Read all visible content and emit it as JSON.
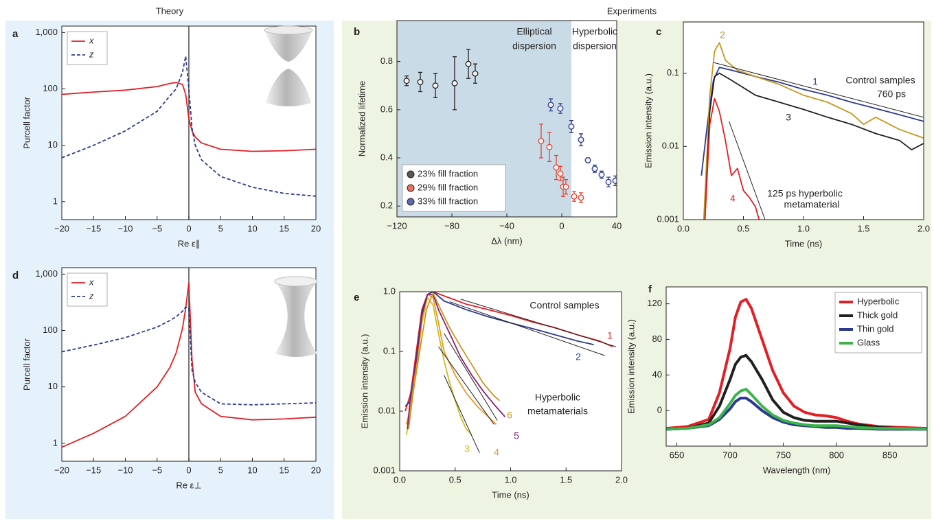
{
  "header": {
    "theory": "Theory",
    "experiments": "Experiments"
  },
  "chart_data": [
    {
      "type": "line",
      "panel_label": "a",
      "y_label": "Purcell factor",
      "x_label": "Re ε∥",
      "log_y": true,
      "zero_line": true,
      "legend": "upper left",
      "x": [
        -20,
        -15,
        -10,
        -5,
        -3,
        -2,
        -1,
        -0.5,
        0,
        0.5,
        1,
        2,
        5,
        10,
        15,
        20
      ],
      "series": [
        {
          "name": "x",
          "color": "#e31e24",
          "dash": false,
          "values": [
            80,
            88,
            95,
            110,
            125,
            130,
            120,
            80,
            30,
            18,
            14,
            11,
            8.5,
            7.8,
            8,
            8.5
          ]
        },
        {
          "name": "z",
          "color": "#2b3990",
          "dash": true,
          "values": [
            6,
            10,
            18,
            40,
            75,
            100,
            200,
            380,
            100,
            20,
            10,
            5.5,
            2.8,
            1.8,
            1.4,
            1.25
          ]
        }
      ],
      "xlim": [
        -20,
        20
      ],
      "xticks": [
        {
          "value": -20,
          "label": "−20"
        },
        {
          "value": -15,
          "label": "−15"
        },
        {
          "value": -10,
          "label": "−10"
        },
        {
          "value": -5,
          "label": "−5"
        },
        0,
        5,
        10,
        15,
        20
      ],
      "ylim": [
        0.48,
        1300
      ],
      "yticks": [
        1,
        10,
        100,
        {
          "value": 1000,
          "label": "1,000"
        }
      ]
    },
    {
      "type": "scatter",
      "panel_label": "b",
      "y_label": "Normalized lifetime",
      "x_label": "Δλ (nm)",
      "legend": "lower left",
      "shaded_region": [
        -120,
        7
      ],
      "shade_color": "#c9dbe6",
      "region_labels": [
        "Elliptical",
        "dispersion",
        "Hyperbolic",
        "dispersion"
      ],
      "series": [
        {
          "name": "23% fill fraction",
          "color": "#231f20",
          "x": [
            -113,
            -103,
            -92,
            -78,
            -68,
            -63
          ],
          "values": [
            0.72,
            0.715,
            0.7,
            0.71,
            0.79,
            0.75
          ],
          "errors": [
            0.02,
            0.04,
            0.05,
            0.11,
            0.06,
            0.04
          ]
        },
        {
          "name": "29% fill fraction",
          "color": "#e8402a",
          "x": [
            -15,
            -9,
            -4,
            -1,
            1,
            3,
            9,
            14
          ],
          "values": [
            0.47,
            0.445,
            0.36,
            0.335,
            0.28,
            0.28,
            0.24,
            0.235
          ],
          "errors": [
            0.07,
            0.06,
            0.05,
            0.03,
            0.04,
            0.03,
            0.02,
            0.02
          ]
        },
        {
          "name": "33% fill fraction",
          "color": "#2b3990",
          "x": [
            -8,
            -1,
            7,
            14,
            19,
            24,
            29,
            34,
            39
          ],
          "values": [
            0.62,
            0.605,
            0.53,
            0.475,
            0.39,
            0.355,
            0.33,
            0.3,
            0.305
          ],
          "errors": [
            0.025,
            0.02,
            0.025,
            0.025,
            0.01,
            0.015,
            0.015,
            0.02,
            0.02
          ]
        }
      ],
      "xlim": [
        -120,
        40
      ],
      "xticks": [
        {
          "value": -120,
          "label": "−120"
        },
        {
          "value": -80,
          "label": "−80"
        },
        {
          "value": -40,
          "label": "−40"
        },
        0,
        40
      ],
      "ylim": [
        0.155,
        0.97
      ],
      "yticks": [
        0.2,
        0.4,
        0.6,
        0.8
      ]
    },
    {
      "type": "line",
      "panel_label": "c",
      "y_label": "Emission intensity (a.u.)",
      "x_label": "Time (ns)",
      "log_y": true,
      "series": [
        {
          "name": "1",
          "color": "#2b3990",
          "x": [
            0.15,
            0.2,
            0.25,
            0.3,
            0.4,
            0.6,
            0.8,
            1.0,
            1.2,
            1.4,
            1.6,
            1.8,
            2.0
          ],
          "values": [
            0.004,
            0.02,
            0.08,
            0.12,
            0.11,
            0.09,
            0.075,
            0.06,
            0.05,
            0.04,
            0.033,
            0.027,
            0.022
          ]
        },
        {
          "name": "2",
          "color": "#c8961e",
          "x": [
            0.17,
            0.22,
            0.26,
            0.3,
            0.35,
            0.45,
            0.6,
            0.8,
            1.0,
            1.2,
            1.4,
            1.5,
            1.6,
            1.8,
            2.0
          ],
          "values": [
            0.001,
            0.05,
            0.2,
            0.26,
            0.15,
            0.11,
            0.09,
            0.07,
            0.05,
            0.04,
            0.028,
            0.02,
            0.025,
            0.017,
            0.013
          ]
        },
        {
          "name": "3",
          "color": "#231f20",
          "x": [
            0.18,
            0.22,
            0.26,
            0.3,
            0.4,
            0.6,
            0.8,
            1.0,
            1.2,
            1.4,
            1.6,
            1.8,
            1.9,
            2.0
          ],
          "values": [
            0.001,
            0.03,
            0.09,
            0.1,
            0.08,
            0.05,
            0.04,
            0.032,
            0.025,
            0.02,
            0.015,
            0.012,
            0.009,
            0.011
          ]
        },
        {
          "name": "4",
          "color": "#e31e24",
          "x": [
            0.18,
            0.22,
            0.26,
            0.3,
            0.35,
            0.4,
            0.45,
            0.5,
            0.55,
            0.6,
            0.63
          ],
          "values": [
            0.001,
            0.02,
            0.045,
            0.03,
            0.012,
            0.004,
            0.005,
            0.0025,
            0.002,
            0.0015,
            0.001
          ]
        }
      ],
      "fits": [
        {
          "x": [
            0.25,
            2.0
          ],
          "values": [
            0.14,
            0.025
          ]
        },
        {
          "x": [
            0.38,
            0.68
          ],
          "values": [
            0.022,
            0.001
          ]
        }
      ],
      "annotations": [
        "Control samples",
        "760 ps",
        "125 ps hyperbolic",
        "metamaterial"
      ],
      "xlim": [
        0,
        2
      ],
      "xticks": [
        {
          "value": 0,
          "label": "0.0"
        },
        0.5,
        {
          "value": 1,
          "label": "1.0"
        },
        1.5,
        {
          "value": 2,
          "label": "2.0"
        }
      ],
      "ylim": [
        0.001,
        0.5
      ],
      "yticks": [
        0.001,
        0.01,
        0.1
      ]
    },
    {
      "type": "line",
      "panel_label": "d",
      "y_label": "Purcell factor",
      "x_label": "Re ε⊥",
      "log_y": true,
      "zero_line": true,
      "legend": "upper left",
      "x": [
        -20,
        -15,
        -10,
        -5,
        -3,
        -2,
        -1,
        -0.5,
        0,
        0.5,
        1,
        2,
        5,
        10,
        15,
        20
      ],
      "series": [
        {
          "name": "x",
          "color": "#e31e24",
          "dash": false,
          "values": [
            0.85,
            1.5,
            3,
            10,
            22,
            40,
            110,
            250,
            700,
            30,
            8,
            5,
            3,
            2.6,
            2.7,
            2.9
          ]
        },
        {
          "name": "z",
          "color": "#2b3990",
          "dash": true,
          "values": [
            42,
            55,
            75,
            115,
            150,
            175,
            220,
            260,
            250,
            20,
            12,
            8,
            5,
            4.8,
            5,
            5.2
          ]
        }
      ],
      "xlim": [
        -20,
        20
      ],
      "xticks": [
        {
          "value": -20,
          "label": "−20"
        },
        {
          "value": -15,
          "label": "−15"
        },
        {
          "value": -10,
          "label": "−10"
        },
        {
          "value": -5,
          "label": "−5"
        },
        0,
        5,
        10,
        15,
        20
      ],
      "ylim": [
        0.48,
        1300
      ],
      "yticks": [
        1,
        10,
        100,
        {
          "value": 1000,
          "label": "1,000"
        }
      ]
    },
    {
      "type": "line",
      "panel_label": "e",
      "y_label": "Emission intensity (a.u.)",
      "x_label": "Time (ns)",
      "log_y": true,
      "series": [
        {
          "name": "1",
          "color": "#e31e24",
          "x": [
            0.05,
            0.1,
            0.15,
            0.2,
            0.25,
            0.3,
            0.4,
            0.6,
            0.8,
            1.0,
            1.2,
            1.4,
            1.6,
            1.8,
            1.92
          ],
          "values": [
            0.01,
            0.02,
            0.1,
            0.5,
            0.9,
            1.0,
            0.85,
            0.62,
            0.5,
            0.4,
            0.31,
            0.25,
            0.19,
            0.15,
            0.12
          ]
        },
        {
          "name": "2",
          "color": "#2b3990",
          "x": [
            0.05,
            0.1,
            0.15,
            0.2,
            0.25,
            0.3,
            0.4,
            0.6,
            0.8,
            1.0,
            1.2,
            1.4,
            1.6,
            1.75
          ],
          "values": [
            0.012,
            0.015,
            0.08,
            0.45,
            0.9,
            1.0,
            0.7,
            0.5,
            0.38,
            0.3,
            0.24,
            0.19,
            0.15,
            0.13
          ]
        },
        {
          "name": "3",
          "color": "#c8c020",
          "x": [
            0.06,
            0.1,
            0.15,
            0.2,
            0.25,
            0.3,
            0.35,
            0.4,
            0.45,
            0.5,
            0.55,
            0.6,
            0.65
          ],
          "values": [
            0.004,
            0.01,
            0.05,
            0.3,
            0.8,
            0.6,
            0.2,
            0.07,
            0.03,
            0.015,
            0.008,
            0.005,
            0.004
          ]
        },
        {
          "name": "4",
          "color": "#f0961e",
          "x": [
            0.06,
            0.1,
            0.15,
            0.2,
            0.25,
            0.3,
            0.35,
            0.4,
            0.5,
            0.6,
            0.7,
            0.8,
            0.87
          ],
          "values": [
            0.006,
            0.012,
            0.06,
            0.35,
            0.9,
            0.8,
            0.3,
            0.1,
            0.04,
            0.02,
            0.012,
            0.008,
            0.006
          ]
        },
        {
          "name": "5",
          "color": "#8b2070",
          "x": [
            0.07,
            0.1,
            0.15,
            0.2,
            0.25,
            0.3,
            0.35,
            0.45,
            0.55,
            0.65,
            0.75,
            0.85,
            0.95
          ],
          "values": [
            0.005,
            0.02,
            0.07,
            0.4,
            0.9,
            0.9,
            0.5,
            0.2,
            0.08,
            0.04,
            0.022,
            0.013,
            0.008
          ]
        },
        {
          "name": "6",
          "color": "#c8961e",
          "x": [
            0.08,
            0.12,
            0.18,
            0.24,
            0.3,
            0.35,
            0.45,
            0.55,
            0.65,
            0.75,
            0.85,
            0.9
          ],
          "values": [
            0.005,
            0.02,
            0.1,
            0.5,
            0.95,
            0.6,
            0.25,
            0.12,
            0.06,
            0.03,
            0.018,
            0.015
          ]
        }
      ],
      "fits": [
        {
          "x": [
            0.55,
            1.95
          ],
          "values": [
            0.75,
            0.12
          ]
        },
        {
          "x": [
            0.45,
            1.85
          ],
          "values": [
            0.68,
            0.085
          ]
        },
        {
          "x": [
            0.4,
            0.88
          ],
          "values": [
            0.2,
            0.007
          ]
        },
        {
          "x": [
            0.35,
            0.85
          ],
          "values": [
            0.12,
            0.006
          ]
        },
        {
          "x": [
            0.4,
            0.72
          ],
          "values": [
            0.04,
            0.002
          ]
        }
      ],
      "annotations": [
        "Control samples",
        "Hyperbolic",
        "metamaterials"
      ],
      "xlim": [
        0,
        2
      ],
      "xticks": [
        {
          "value": 0,
          "label": "0.0"
        },
        0.5,
        {
          "value": 1,
          "label": "1.0"
        },
        1.5,
        {
          "value": 2,
          "label": "2.0"
        }
      ],
      "ylim": [
        0.001,
        1
      ],
      "yticks": [
        0.001,
        0.01,
        0.1,
        {
          "value": 1,
          "label": "1.0"
        }
      ]
    },
    {
      "type": "line",
      "panel_label": "f",
      "y_label": "Emission intensity (a.u.)",
      "x_label": "Wavelength (nm)",
      "legend": "upper right",
      "line_width": 4,
      "x": [
        640,
        660,
        680,
        690,
        700,
        705,
        710,
        715,
        720,
        730,
        740,
        750,
        760,
        770,
        780,
        790,
        800,
        810,
        820,
        840,
        860,
        885
      ],
      "series": [
        {
          "name": "Hyperbolic",
          "color": "#e31e24",
          "values": [
            -20,
            -18,
            -10,
            20,
            70,
            105,
            122,
            125,
            115,
            80,
            45,
            20,
            5,
            -2,
            -5,
            -6,
            -8,
            -12,
            -15,
            -18,
            -19,
            -20
          ]
        },
        {
          "name": "Thick gold",
          "color": "#231f20",
          "values": [
            -21,
            -20,
            -14,
            5,
            35,
            52,
            60,
            62,
            55,
            35,
            12,
            -2,
            -8,
            -11,
            -12,
            -12,
            -12,
            -14,
            -16,
            -19,
            -20,
            -21
          ]
        },
        {
          "name": "Thin gold",
          "color": "#2b3990",
          "values": [
            -21,
            -20,
            -17,
            -10,
            2,
            10,
            14,
            14,
            10,
            0,
            -8,
            -13,
            -16,
            -17,
            -18,
            -19,
            -19,
            -20,
            -20,
            -21,
            -21,
            -21
          ]
        },
        {
          "name": "Glass",
          "color": "#3cb44a",
          "values": [
            -21,
            -20,
            -16,
            -8,
            8,
            17,
            22,
            24,
            18,
            5,
            -5,
            -11,
            -14,
            -16,
            -17,
            -17,
            -17,
            -18,
            -19,
            -20,
            -20,
            -21
          ]
        }
      ],
      "xlim": [
        640,
        885
      ],
      "xticks": [
        650,
        700,
        750,
        800,
        850
      ],
      "ylim": [
        -40,
        139
      ],
      "yticks": [
        0,
        40,
        80,
        120
      ]
    }
  ]
}
